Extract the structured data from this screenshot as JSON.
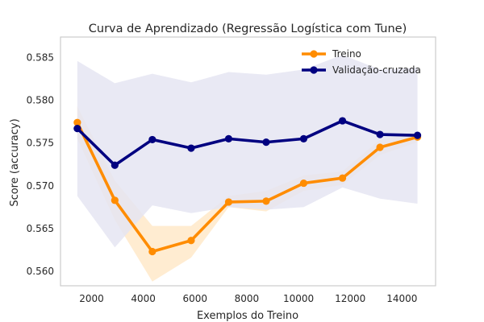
{
  "chart_data": {
    "type": "line",
    "title": "Curva de Aprendizado (Regressão Logística com Tune)",
    "xlabel": "Exemplos do Treino",
    "ylabel": "Score (accuracy)",
    "xlim": [
      800,
      15300
    ],
    "ylim": [
      0.5583,
      0.5874
    ],
    "xticks": [
      2000,
      4000,
      6000,
      8000,
      10000,
      12000,
      14000
    ],
    "xtick_labels": [
      "2000",
      "4000",
      "6000",
      "8000",
      "10000",
      "12000",
      "14000"
    ],
    "yticks": [
      0.56,
      0.565,
      0.57,
      0.575,
      0.58,
      0.585
    ],
    "ytick_labels": [
      "0.560",
      "0.565",
      "0.570",
      "0.575",
      "0.580",
      "0.585"
    ],
    "grid": false,
    "legend": "top-right",
    "x": [
      1450,
      2900,
      4350,
      5850,
      7300,
      8750,
      10200,
      11700,
      13150,
      14600
    ],
    "series": [
      {
        "name": "Treino",
        "color": "#ff8c00",
        "band_color": "#ffe9c9",
        "values": [
          0.5774,
          0.5683,
          0.5623,
          0.5636,
          0.5681,
          0.5682,
          0.5703,
          0.5709,
          0.5745,
          0.5757
        ],
        "lower": [
          0.5755,
          0.566,
          0.5588,
          0.5616,
          0.5675,
          0.567,
          0.5694,
          0.5701,
          0.5736,
          0.5751
        ],
        "upper": [
          0.5793,
          0.5706,
          0.5653,
          0.5653,
          0.5688,
          0.5694,
          0.5712,
          0.5717,
          0.5754,
          0.5763
        ]
      },
      {
        "name": "Validação-cruzada",
        "color": "#000080",
        "band_color": "#e5e5f2",
        "values": [
          0.5767,
          0.5724,
          0.5754,
          0.5744,
          0.5755,
          0.5751,
          0.5755,
          0.5776,
          0.576,
          0.5759
        ],
        "lower": [
          0.5688,
          0.5628,
          0.5677,
          0.5668,
          0.5675,
          0.5672,
          0.5675,
          0.5698,
          0.5685,
          0.5679
        ],
        "upper": [
          0.5846,
          0.582,
          0.5831,
          0.5821,
          0.5833,
          0.583,
          0.5836,
          0.5853,
          0.5836,
          0.5838
        ]
      }
    ]
  }
}
